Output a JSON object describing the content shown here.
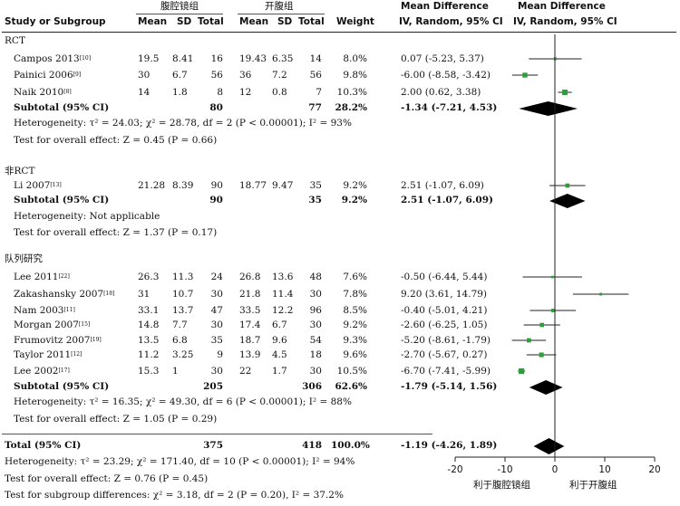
{
  "headers": {
    "group1": "腹腔镜组",
    "group2": "开腹组",
    "study": "Study or Subgroup",
    "mean1": "Mean",
    "sd1": "SD",
    "total1": "Total",
    "mean2": "Mean",
    "sd2": "SD",
    "total2": "Total",
    "weight": "Weight",
    "md_text_1": "Mean Difference",
    "md_text_2": "IV, Random, 95% CI",
    "md_plot_1": "Mean Difference",
    "md_plot_2": "IV, Random, 95% CI"
  },
  "subgroups": [
    {
      "name": "RCT",
      "studies": [
        {
          "name": "Campos 2013",
          "ref": "[10]",
          "m1": "19.5",
          "sd1": "8.41",
          "n1": "16",
          "m2": "19.43",
          "sd2": "6.35",
          "n2": "14",
          "weight": "8.0%",
          "ci": "0.07 (-5.23, 5.37)",
          "md": 0.07,
          "lo": -5.23,
          "hi": 5.37,
          "w": 8.0
        },
        {
          "name": "Painici 2006",
          "ref": "[9]",
          "m1": "30",
          "sd1": "6.7",
          "n1": "56",
          "m2": "36",
          "sd2": "7.2",
          "n2": "56",
          "weight": "9.8%",
          "ci": "-6.00 (-8.58, -3.42)",
          "md": -6.0,
          "lo": -8.58,
          "hi": -3.42,
          "w": 9.8
        },
        {
          "name": "Naik 2010",
          "ref": "[8]",
          "m1": "14",
          "sd1": "1.8",
          "n1": "8",
          "m2": "12",
          "sd2": "0.8",
          "n2": "7",
          "weight": "10.3%",
          "ci": "2.00 (0.62, 3.38)",
          "md": 2.0,
          "lo": 0.62,
          "hi": 3.38,
          "w": 10.3
        }
      ],
      "subtotal": {
        "label": "Subtotal (95% CI)",
        "n1": "80",
        "n2": "77",
        "weight": "28.2%",
        "ci": "-1.34 (-7.21, 4.53)",
        "md": -1.34,
        "lo": -7.21,
        "hi": 4.53
      },
      "het": "Heterogeneity: τ² = 24.03; χ² = 28.78, df = 2 (P < 0.00001); I² = 93%",
      "overall": "Test for overall effect: Z = 0.45 (P = 0.66)"
    },
    {
      "name": "非RCT",
      "studies": [
        {
          "name": "Li 2007",
          "ref": "[13]",
          "m1": "21.28",
          "sd1": "8.39",
          "n1": "90",
          "m2": "18.77",
          "sd2": "9.47",
          "n2": "35",
          "weight": "9.2%",
          "ci": "2.51 (-1.07, 6.09)",
          "md": 2.51,
          "lo": -1.07,
          "hi": 6.09,
          "w": 9.2
        }
      ],
      "subtotal": {
        "label": "Subtotal (95% CI)",
        "n1": "90",
        "n2": "35",
        "weight": "9.2%",
        "ci": "2.51 (-1.07, 6.09)",
        "md": 2.51,
        "lo": -1.07,
        "hi": 6.09
      },
      "het": "Heterogeneity: Not applicable",
      "overall": "Test for overall effect: Z = 1.37 (P = 0.17)"
    },
    {
      "name": "队列研究",
      "studies": [
        {
          "name": "Lee 2011",
          "ref": "[22]",
          "m1": "26.3",
          "sd1": "11.3",
          "n1": "24",
          "m2": "26.8",
          "sd2": "13.6",
          "n2": "48",
          "weight": "7.6%",
          "ci": "-0.50 (-6.44, 5.44)",
          "md": -0.5,
          "lo": -6.44,
          "hi": 5.44,
          "w": 7.6
        },
        {
          "name": "Zakashansky 2007",
          "ref": "[18]",
          "m1": "31",
          "sd1": "10.7",
          "n1": "30",
          "m2": "21.8",
          "sd2": "11.4",
          "n2": "30",
          "weight": "7.8%",
          "ci": "9.20 (3.61, 14.79)",
          "md": 9.2,
          "lo": 3.61,
          "hi": 14.79,
          "w": 7.8
        },
        {
          "name": "Nam 2003",
          "ref": "[11]",
          "m1": "33.1",
          "sd1": "13.7",
          "n1": "47",
          "m2": "33.5",
          "sd2": "12.2",
          "n2": "96",
          "weight": "8.5%",
          "ci": "-0.40 (-5.01, 4.21)",
          "md": -0.4,
          "lo": -5.01,
          "hi": 4.21,
          "w": 8.5
        },
        {
          "name": "Morgan 2007",
          "ref": "[15]",
          "m1": "14.8",
          "sd1": "7.7",
          "n1": "30",
          "m2": "17.4",
          "sd2": "6.7",
          "n2": "30",
          "weight": "9.2%",
          "ci": "-2.60 (-6.25, 1.05)",
          "md": -2.6,
          "lo": -6.25,
          "hi": 1.05,
          "w": 9.2
        },
        {
          "name": "Frumovitz 2007",
          "ref": "[19]",
          "m1": "13.5",
          "sd1": "6.8",
          "n1": "35",
          "m2": "18.7",
          "sd2": "9.6",
          "n2": "54",
          "weight": "9.3%",
          "ci": "-5.20 (-8.61, -1.79)",
          "md": -5.2,
          "lo": -8.61,
          "hi": -1.79,
          "w": 9.3
        },
        {
          "name": "Taylor 2011",
          "ref": "[12]",
          "m1": "11.2",
          "sd1": "3.25",
          "n1": "9",
          "m2": "13.9",
          "sd2": "4.5",
          "n2": "18",
          "weight": "9.6%",
          "ci": "-2.70 (-5.67, 0.27)",
          "md": -2.7,
          "lo": -5.67,
          "hi": 0.27,
          "w": 9.6
        },
        {
          "name": "Lee 2002",
          "ref": "[17]",
          "m1": "15.3",
          "sd1": "1",
          "n1": "30",
          "m2": "22",
          "sd2": "1.7",
          "n2": "30",
          "weight": "10.5%",
          "ci": "-6.70 (-7.41, -5.99)",
          "md": -6.7,
          "lo": -7.41,
          "hi": -5.99,
          "w": 10.5
        }
      ],
      "subtotal": {
        "label": "Subtotal (95% CI)",
        "n1": "205",
        "n2": "306",
        "weight": "62.6%",
        "ci": "-1.79 (-5.14, 1.56)",
        "md": -1.79,
        "lo": -5.14,
        "hi": 1.56
      },
      "het": "Heterogeneity: τ² = 16.35; χ² = 49.30, df = 6 (P < 0.00001); I² = 88%",
      "overall": "Test for overall effect: Z = 1.05 (P = 0.29)"
    }
  ],
  "total": {
    "label": "Total (95% CI)",
    "n1": "375",
    "n2": "418",
    "weight": "100.0%",
    "ci": "-1.19 (-4.26, 1.89)",
    "md": -1.19,
    "lo": -4.26,
    "hi": 1.89
  },
  "footer": {
    "het": "Heterogeneity: τ² = 23.29; χ² = 171.40, df = 10 (P < 0.00001); I² = 94%",
    "overall": "Test for overall effect: Z = 0.76 (P = 0.45)",
    "subgroup": "Test for subgroup differences: χ² = 3.18, df = 2 (P = 0.20), I² = 37.2%"
  },
  "axis": {
    "ticks": [
      -20,
      -10,
      0,
      10,
      20
    ],
    "tick_labels": [
      "-20",
      "-10",
      "0",
      "10",
      "20"
    ],
    "favours_left": "利于腹腔镜组",
    "favours_right": "利于开腹组"
  },
  "chart_data": {
    "type": "forest",
    "xlim": [
      -20,
      20
    ],
    "colors": {
      "study_marker": "#2e9e3b",
      "diamond": "#000000"
    }
  }
}
